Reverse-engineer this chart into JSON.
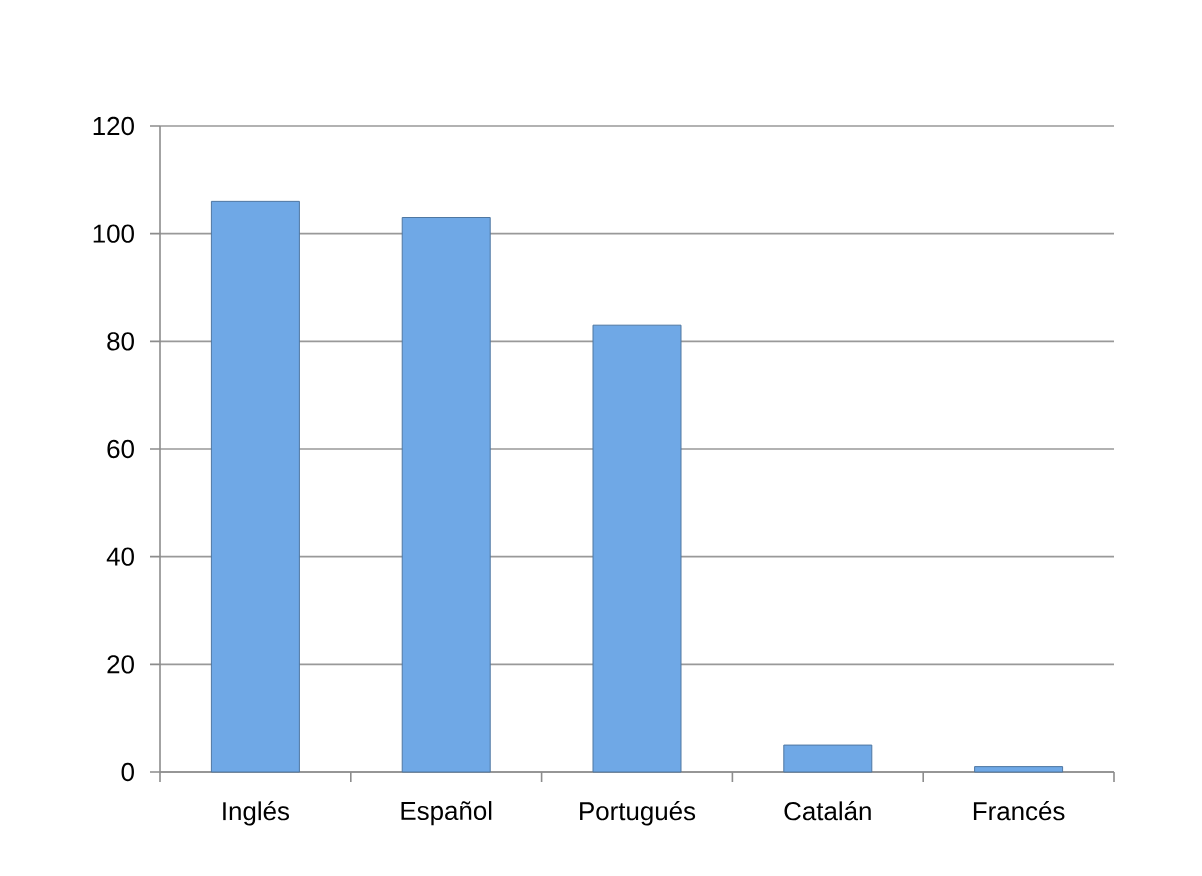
{
  "chart_data": {
    "type": "bar",
    "categories": [
      "Inglés",
      "Español",
      "Portugués",
      "Catalán",
      "Francés"
    ],
    "values": [
      106,
      103,
      83,
      5,
      1
    ],
    "color": "#6fa8e6",
    "ylim": [
      0,
      120
    ],
    "yticks": [
      0,
      20,
      40,
      60,
      80,
      100,
      120
    ],
    "grid": "y"
  }
}
